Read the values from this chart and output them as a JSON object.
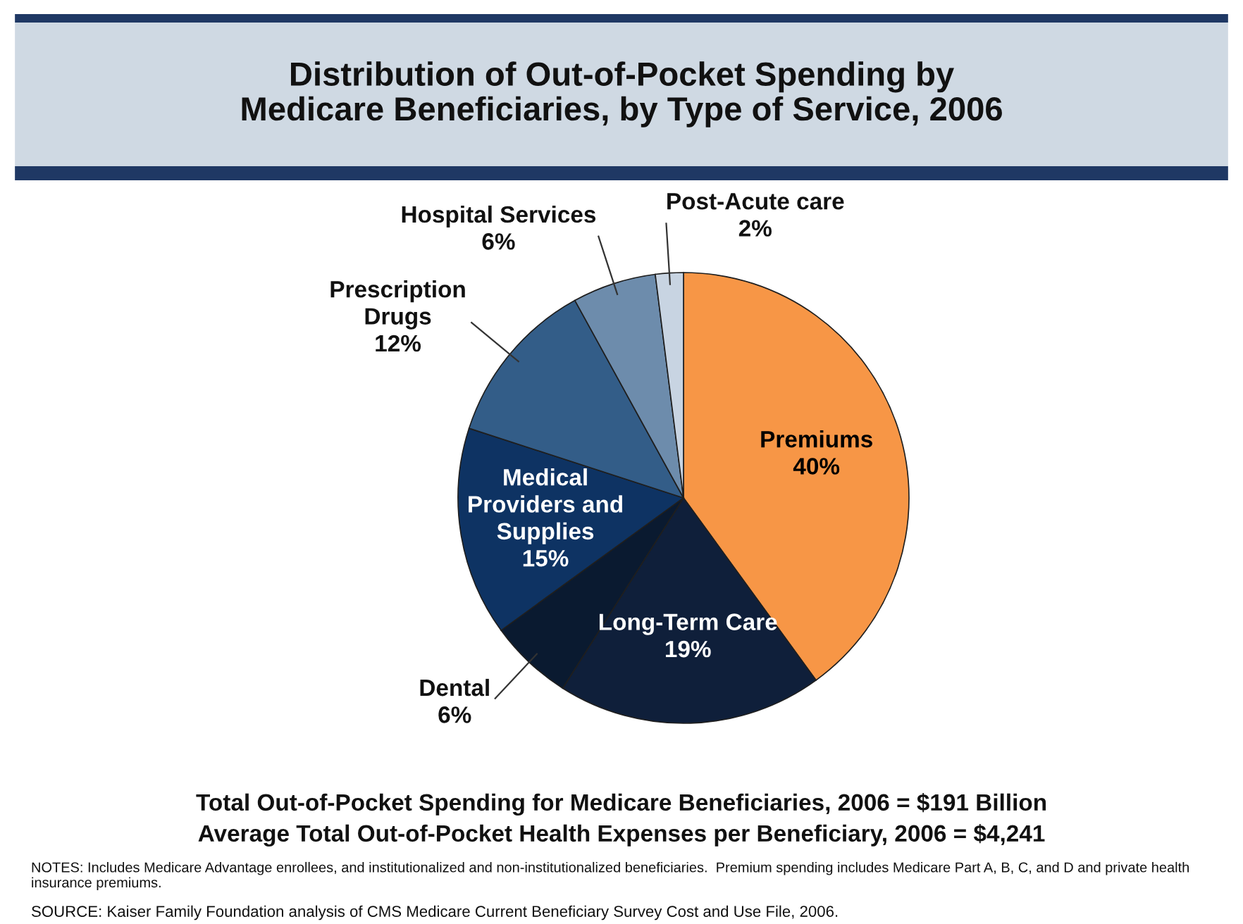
{
  "chart_data": {
    "type": "pie",
    "title": "Distribution of Out-of-Pocket Spending by\nMedicare Beneficiaries, by Type of Service, 2006",
    "categories": [
      "Premiums",
      "Long-Term Care",
      "Dental",
      "Medical\nProviders and\nSupplies",
      "Prescription\nDrugs",
      "Hospital Services",
      "Post-Acute care"
    ],
    "values": [
      40,
      19,
      6,
      15,
      12,
      6,
      2
    ],
    "colors": [
      "#f79646",
      "#0f1f3a",
      "#0a1a30",
      "#0e3363",
      "#335d88",
      "#6d8cac",
      "#c8d4e2"
    ],
    "value_labels": [
      "40%",
      "19%",
      "6%",
      "15%",
      "12%",
      "6%",
      "2%"
    ],
    "annotations": [
      "Total Out-of-Pocket Spending for Medicare Beneficiaries, 2006 = $191 Billion",
      "Average Total Out-of-Pocket Health Expenses per Beneficiary, 2006 = $4,241",
      "NOTES: Includes Medicare Advantage enrollees, and institutionalized and non-institutionalized beneficiaries.  Premium spending includes Medicare Part A, B, C, and D and private health insurance premiums.",
      "SOURCE: Kaiser Family Foundation analysis of CMS Medicare Current Beneficiary Survey Cost and Use File, 2006."
    ]
  }
}
